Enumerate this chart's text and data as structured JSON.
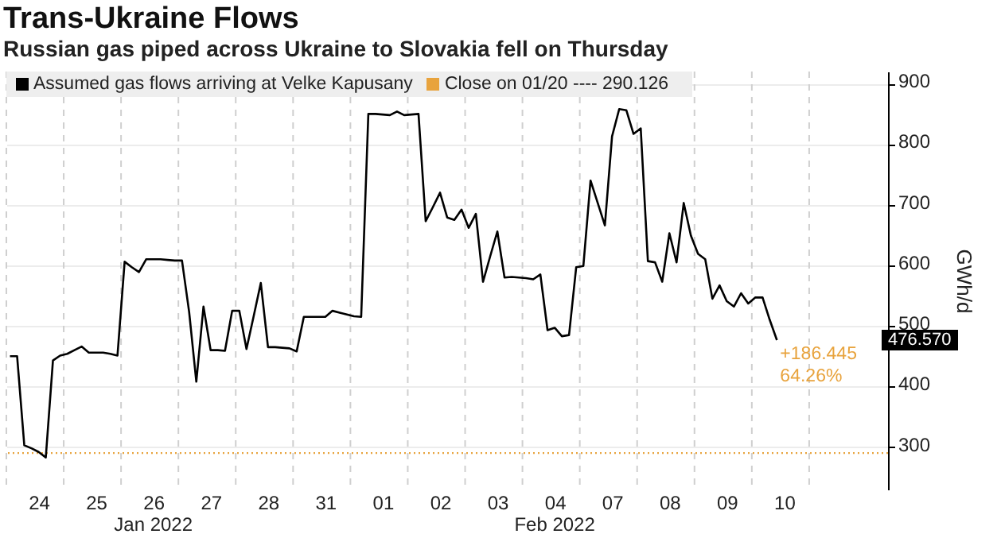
{
  "chart_data": {
    "type": "line",
    "title": "Trans-Ukraine Flows",
    "subtitle": "Russian gas piped across Ukraine to Slovakia fell on Thursday",
    "ylabel": "GWh/d",
    "categories": [
      null,
      null,
      null,
      null,
      "24",
      null,
      null,
      null,
      null,
      null,
      null,
      null,
      "25",
      null,
      null,
      null,
      null,
      null,
      null,
      null,
      "26",
      null,
      null,
      null,
      null,
      null,
      null,
      null,
      "27",
      null,
      null,
      null,
      null,
      null,
      null,
      null,
      "28",
      null,
      null,
      null,
      null,
      null,
      null,
      null,
      "31",
      null,
      null,
      null,
      null,
      null,
      null,
      null,
      "01",
      null,
      null,
      null,
      null,
      null,
      null,
      null,
      "02",
      null,
      null,
      null,
      null,
      null,
      null,
      null,
      "03",
      null,
      null,
      null,
      null,
      null,
      null,
      null,
      "04",
      null,
      null,
      null,
      null,
      null,
      null,
      null,
      "07",
      null,
      null,
      null,
      null,
      null,
      null,
      null,
      "08",
      null,
      null,
      null,
      null,
      null,
      null,
      null,
      "09",
      null,
      null,
      null,
      null,
      null,
      null,
      null,
      "10",
      null,
      null,
      null,
      null,
      null,
      null,
      null,
      null,
      null,
      null,
      null,
      null,
      null,
      null
    ],
    "ylim": [
      230,
      920
    ],
    "yticks": [
      300,
      400,
      500,
      600,
      700,
      800,
      900
    ],
    "grid": true,
    "legend": "top left",
    "series": [
      {
        "name": "Assumed gas flows arriving at Velke Kapusany",
        "color": "#000000",
        "values": [
          450,
          450,
          303,
          298,
          292,
          283,
          443,
          451,
          454,
          460,
          466,
          456,
          456,
          456,
          454,
          451,
          606,
          597,
          589,
          610,
          610,
          610,
          609,
          608,
          608,
          523,
          408,
          532,
          460,
          460,
          459,
          525,
          525,
          462,
          516,
          571,
          465,
          465,
          464,
          463,
          458,
          515,
          515,
          515,
          515,
          525,
          522,
          519,
          516,
          515,
          850,
          850,
          849,
          848,
          854,
          848,
          849,
          850,
          673,
          696,
          720,
          679,
          675,
          692,
          662,
          685,
          573,
          615,
          656,
          580,
          581,
          580,
          579,
          577,
          585,
          493,
          497,
          483,
          485,
          597,
          599,
          740,
          703,
          666,
          813,
          858,
          856,
          817,
          826,
          607,
          605,
          573,
          653,
          605,
          703,
          649,
          619,
          610,
          545,
          567,
          541,
          532,
          554,
          537,
          547,
          547,
          510,
          476.57,
          null,
          null,
          null,
          null,
          null,
          null,
          null,
          null,
          null,
          null,
          null,
          null,
          null,
          null,
          null
        ]
      }
    ],
    "ref_lines": [
      {
        "axis": "y",
        "value": 290.126,
        "label": "Close on 01/20 ---- 290.126",
        "color": "#e8a33d",
        "line_style": "dotted"
      }
    ],
    "annotations": [
      "476.570",
      "+186.445",
      "64.26%",
      "Jan 2022",
      "Feb 2022"
    ]
  }
}
